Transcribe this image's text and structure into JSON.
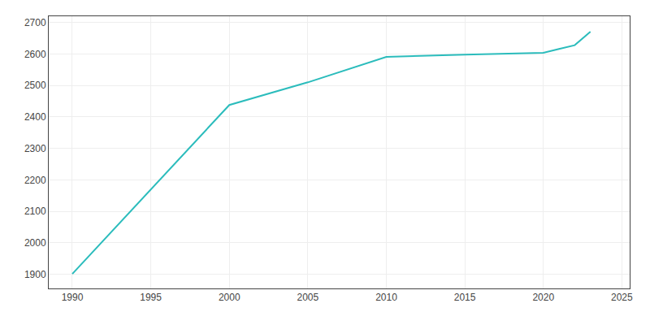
{
  "chart_data": {
    "type": "line",
    "x": [
      1990,
      2000,
      2005,
      2010,
      2015,
      2020,
      2021,
      2022,
      2023
    ],
    "values": [
      1901,
      2438,
      2510,
      2591,
      2598,
      2604,
      2616,
      2628,
      2671
    ],
    "color": "#2bbcbc",
    "xlim": [
      1988.5,
      2025.5
    ],
    "ylim": [
      1855,
      2720
    ],
    "xticks": [
      1990,
      1995,
      2000,
      2005,
      2010,
      2015,
      2020,
      2025
    ],
    "yticks": [
      1900,
      2000,
      2100,
      2200,
      2300,
      2400,
      2500,
      2600,
      2700
    ],
    "grid": true
  }
}
